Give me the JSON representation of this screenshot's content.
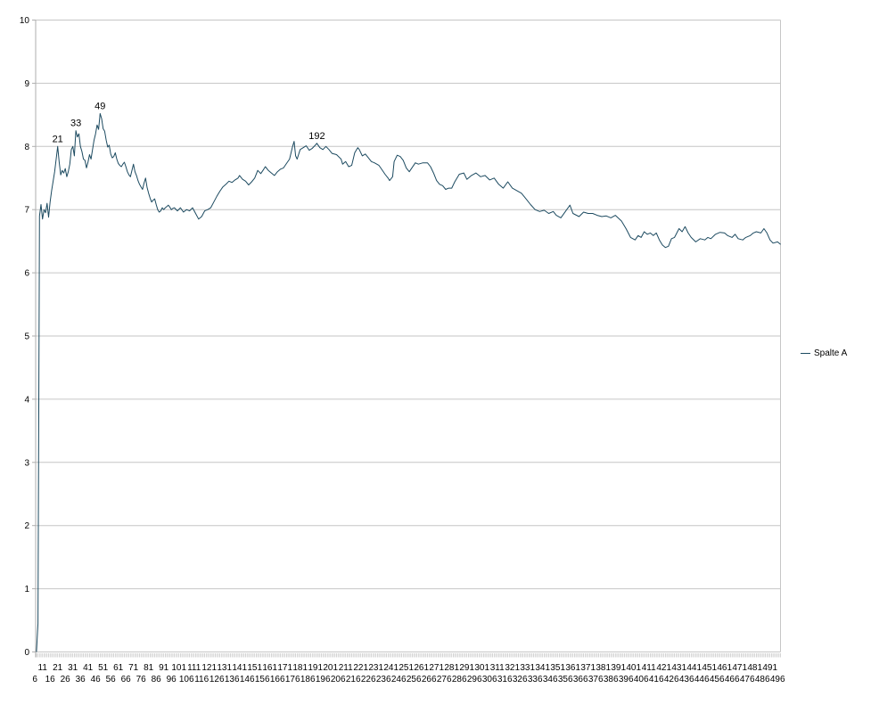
{
  "legend": {
    "label": "Spalte A"
  },
  "chart_data": {
    "type": "line",
    "title": "",
    "xlabel": "",
    "ylabel": "",
    "legend_position": "right",
    "grid": "horizontal",
    "background_color": "#ffffff",
    "gridline_color": "#c6c6c6",
    "axis_color": "#aeaeae",
    "tick_color": "#c9c9c9",
    "text_color": "#000000",
    "y_axis": {
      "range": [
        0,
        10
      ],
      "ticks": [
        0,
        1,
        2,
        3,
        4,
        5,
        6,
        7,
        8,
        9,
        10
      ]
    },
    "x_axis": {
      "visible_category_range": [
        6.5,
        498
      ],
      "label_interval": 5,
      "staggered_rows": true,
      "labels": [
        6,
        11,
        16,
        21,
        26,
        31,
        36,
        41,
        46,
        51,
        56,
        61,
        66,
        71,
        76,
        81,
        86,
        91,
        96,
        101,
        106,
        111,
        116,
        121,
        126,
        131,
        136,
        141,
        146,
        151,
        156,
        161,
        166,
        171,
        176,
        181,
        186,
        191,
        196,
        201,
        206,
        211,
        216,
        221,
        226,
        231,
        236,
        241,
        246,
        251,
        256,
        261,
        266,
        271,
        276,
        281,
        286,
        291,
        296,
        301,
        306,
        311,
        316,
        321,
        326,
        331,
        336,
        341,
        346,
        351,
        356,
        361,
        366,
        371,
        376,
        381,
        386,
        391,
        396,
        401,
        406,
        411,
        416,
        421,
        426,
        431,
        436,
        441,
        446,
        451,
        456,
        461,
        466,
        471,
        476,
        481,
        486,
        491,
        496
      ]
    },
    "annotations": [
      {
        "x": 21,
        "y": 8.0,
        "text": "21"
      },
      {
        "x": 33,
        "y": 8.25,
        "text": "33"
      },
      {
        "x": 49,
        "y": 8.52,
        "text": "49"
      },
      {
        "x": 192,
        "y": 8.05,
        "text": "192"
      }
    ],
    "series": [
      {
        "name": "Spalte A",
        "color": "#1c4a60",
        "points": [
          [
            7,
            0
          ],
          [
            8,
            0.45
          ],
          [
            9,
            6.9
          ],
          [
            10,
            7.08
          ],
          [
            11,
            6.85
          ],
          [
            12,
            7.0
          ],
          [
            13,
            6.95
          ],
          [
            14,
            7.1
          ],
          [
            15,
            6.88
          ],
          [
            16,
            7.12
          ],
          [
            17,
            7.3
          ],
          [
            18,
            7.45
          ],
          [
            19,
            7.6
          ],
          [
            20,
            7.8
          ],
          [
            21,
            8.0
          ],
          [
            22,
            7.75
          ],
          [
            23,
            7.55
          ],
          [
            24,
            7.62
          ],
          [
            25,
            7.58
          ],
          [
            26,
            7.65
          ],
          [
            27,
            7.52
          ],
          [
            28,
            7.6
          ],
          [
            29,
            7.72
          ],
          [
            30,
            7.95
          ],
          [
            31,
            8.0
          ],
          [
            32,
            7.85
          ],
          [
            33,
            8.25
          ],
          [
            34,
            8.15
          ],
          [
            35,
            8.2
          ],
          [
            36,
            8.0
          ],
          [
            37,
            7.92
          ],
          [
            38,
            7.8
          ],
          [
            39,
            7.78
          ],
          [
            40,
            7.66
          ],
          [
            41,
            7.75
          ],
          [
            42,
            7.87
          ],
          [
            43,
            7.8
          ],
          [
            44,
            7.95
          ],
          [
            45,
            8.1
          ],
          [
            46,
            8.2
          ],
          [
            47,
            8.34
          ],
          [
            48,
            8.27
          ],
          [
            49,
            8.52
          ],
          [
            50,
            8.44
          ],
          [
            51,
            8.28
          ],
          [
            52,
            8.24
          ],
          [
            53,
            8.1
          ],
          [
            54,
            7.99
          ],
          [
            55,
            8.02
          ],
          [
            56,
            7.88
          ],
          [
            57,
            7.82
          ],
          [
            58,
            7.84
          ],
          [
            59,
            7.9
          ],
          [
            60,
            7.8
          ],
          [
            61,
            7.73
          ],
          [
            62,
            7.7
          ],
          [
            63,
            7.68
          ],
          [
            64,
            7.72
          ],
          [
            65,
            7.75
          ],
          [
            66,
            7.68
          ],
          [
            67,
            7.6
          ],
          [
            68,
            7.55
          ],
          [
            69,
            7.52
          ],
          [
            70,
            7.62
          ],
          [
            71,
            7.72
          ],
          [
            72,
            7.6
          ],
          [
            73,
            7.54
          ],
          [
            74,
            7.46
          ],
          [
            75,
            7.4
          ],
          [
            76,
            7.36
          ],
          [
            77,
            7.32
          ],
          [
            78,
            7.42
          ],
          [
            79,
            7.5
          ],
          [
            80,
            7.35
          ],
          [
            81,
            7.26
          ],
          [
            82,
            7.18
          ],
          [
            83,
            7.12
          ],
          [
            84,
            7.15
          ],
          [
            85,
            7.17
          ],
          [
            86,
            7.08
          ],
          [
            87,
            7.0
          ],
          [
            88,
            6.96
          ],
          [
            89,
            6.98
          ],
          [
            90,
            7.03
          ],
          [
            91,
            7.0
          ],
          [
            92,
            7.03
          ],
          [
            93,
            7.05
          ],
          [
            94,
            7.07
          ],
          [
            95,
            7.04
          ],
          [
            96,
            7.0
          ],
          [
            97,
            7.02
          ],
          [
            98,
            7.03
          ],
          [
            100,
            6.98
          ],
          [
            102,
            7.03
          ],
          [
            104,
            6.96
          ],
          [
            106,
            7.0
          ],
          [
            108,
            6.98
          ],
          [
            110,
            7.03
          ],
          [
            112,
            6.94
          ],
          [
            114,
            6.85
          ],
          [
            116,
            6.89
          ],
          [
            118,
            6.98
          ],
          [
            120,
            7.0
          ],
          [
            122,
            7.03
          ],
          [
            124,
            7.12
          ],
          [
            126,
            7.21
          ],
          [
            128,
            7.29
          ],
          [
            130,
            7.36
          ],
          [
            132,
            7.4
          ],
          [
            134,
            7.45
          ],
          [
            136,
            7.43
          ],
          [
            138,
            7.47
          ],
          [
            140,
            7.5
          ],
          [
            141,
            7.54
          ],
          [
            143,
            7.48
          ],
          [
            145,
            7.45
          ],
          [
            147,
            7.39
          ],
          [
            149,
            7.44
          ],
          [
            151,
            7.5
          ],
          [
            153,
            7.62
          ],
          [
            155,
            7.57
          ],
          [
            157,
            7.64
          ],
          [
            158,
            7.68
          ],
          [
            160,
            7.62
          ],
          [
            162,
            7.58
          ],
          [
            164,
            7.54
          ],
          [
            166,
            7.6
          ],
          [
            168,
            7.64
          ],
          [
            170,
            7.66
          ],
          [
            172,
            7.73
          ],
          [
            174,
            7.8
          ],
          [
            176,
            8.0
          ],
          [
            177,
            8.08
          ],
          [
            178,
            7.85
          ],
          [
            179,
            7.8
          ],
          [
            181,
            7.95
          ],
          [
            183,
            7.98
          ],
          [
            185,
            8.01
          ],
          [
            187,
            7.94
          ],
          [
            189,
            7.97
          ],
          [
            191,
            8.02
          ],
          [
            192,
            8.05
          ],
          [
            194,
            7.98
          ],
          [
            196,
            7.95
          ],
          [
            198,
            8.0
          ],
          [
            200,
            7.95
          ],
          [
            202,
            7.89
          ],
          [
            205,
            7.87
          ],
          [
            208,
            7.8
          ],
          [
            209,
            7.72
          ],
          [
            211,
            7.76
          ],
          [
            213,
            7.68
          ],
          [
            215,
            7.7
          ],
          [
            217,
            7.9
          ],
          [
            219,
            7.98
          ],
          [
            220,
            7.95
          ],
          [
            222,
            7.85
          ],
          [
            224,
            7.88
          ],
          [
            226,
            7.82
          ],
          [
            228,
            7.76
          ],
          [
            230,
            7.74
          ],
          [
            233,
            7.7
          ],
          [
            235,
            7.63
          ],
          [
            237,
            7.56
          ],
          [
            239,
            7.5
          ],
          [
            240,
            7.46
          ],
          [
            242,
            7.52
          ],
          [
            243,
            7.76
          ],
          [
            245,
            7.86
          ],
          [
            247,
            7.84
          ],
          [
            249,
            7.78
          ],
          [
            251,
            7.66
          ],
          [
            253,
            7.6
          ],
          [
            255,
            7.67
          ],
          [
            257,
            7.74
          ],
          [
            259,
            7.72
          ],
          [
            262,
            7.74
          ],
          [
            265,
            7.74
          ],
          [
            267,
            7.68
          ],
          [
            269,
            7.58
          ],
          [
            271,
            7.46
          ],
          [
            273,
            7.4
          ],
          [
            275,
            7.38
          ],
          [
            277,
            7.32
          ],
          [
            279,
            7.34
          ],
          [
            281,
            7.34
          ],
          [
            283,
            7.44
          ],
          [
            286,
            7.56
          ],
          [
            289,
            7.58
          ],
          [
            291,
            7.48
          ],
          [
            294,
            7.54
          ],
          [
            297,
            7.58
          ],
          [
            300,
            7.52
          ],
          [
            303,
            7.54
          ],
          [
            306,
            7.47
          ],
          [
            309,
            7.5
          ],
          [
            312,
            7.4
          ],
          [
            315,
            7.34
          ],
          [
            318,
            7.44
          ],
          [
            321,
            7.34
          ],
          [
            324,
            7.3
          ],
          [
            327,
            7.26
          ],
          [
            330,
            7.17
          ],
          [
            333,
            7.08
          ],
          [
            336,
            7.0
          ],
          [
            339,
            6.97
          ],
          [
            342,
            6.99
          ],
          [
            345,
            6.94
          ],
          [
            348,
            6.97
          ],
          [
            350,
            6.91
          ],
          [
            353,
            6.87
          ],
          [
            356,
            6.97
          ],
          [
            359,
            7.07
          ],
          [
            361,
            6.94
          ],
          [
            365,
            6.89
          ],
          [
            368,
            6.96
          ],
          [
            371,
            6.94
          ],
          [
            374,
            6.94
          ],
          [
            377,
            6.91
          ],
          [
            380,
            6.89
          ],
          [
            383,
            6.9
          ],
          [
            386,
            6.87
          ],
          [
            389,
            6.91
          ],
          [
            393,
            6.82
          ],
          [
            396,
            6.7
          ],
          [
            399,
            6.56
          ],
          [
            402,
            6.52
          ],
          [
            404,
            6.59
          ],
          [
            406,
            6.56
          ],
          [
            408,
            6.65
          ],
          [
            410,
            6.61
          ],
          [
            412,
            6.63
          ],
          [
            414,
            6.59
          ],
          [
            416,
            6.63
          ],
          [
            418,
            6.52
          ],
          [
            420,
            6.44
          ],
          [
            422,
            6.4
          ],
          [
            424,
            6.42
          ],
          [
            426,
            6.54
          ],
          [
            428,
            6.56
          ],
          [
            431,
            6.7
          ],
          [
            433,
            6.65
          ],
          [
            435,
            6.73
          ],
          [
            437,
            6.63
          ],
          [
            439,
            6.56
          ],
          [
            442,
            6.49
          ],
          [
            445,
            6.54
          ],
          [
            448,
            6.52
          ],
          [
            450,
            6.56
          ],
          [
            452,
            6.54
          ],
          [
            455,
            6.61
          ],
          [
            458,
            6.64
          ],
          [
            461,
            6.63
          ],
          [
            463,
            6.59
          ],
          [
            466,
            6.56
          ],
          [
            468,
            6.61
          ],
          [
            470,
            6.54
          ],
          [
            473,
            6.52
          ],
          [
            475,
            6.56
          ],
          [
            478,
            6.59
          ],
          [
            480,
            6.63
          ],
          [
            482,
            6.65
          ],
          [
            485,
            6.63
          ],
          [
            487,
            6.7
          ],
          [
            489,
            6.63
          ],
          [
            491,
            6.52
          ],
          [
            493,
            6.47
          ],
          [
            496,
            6.49
          ],
          [
            498,
            6.45
          ]
        ]
      }
    ]
  }
}
